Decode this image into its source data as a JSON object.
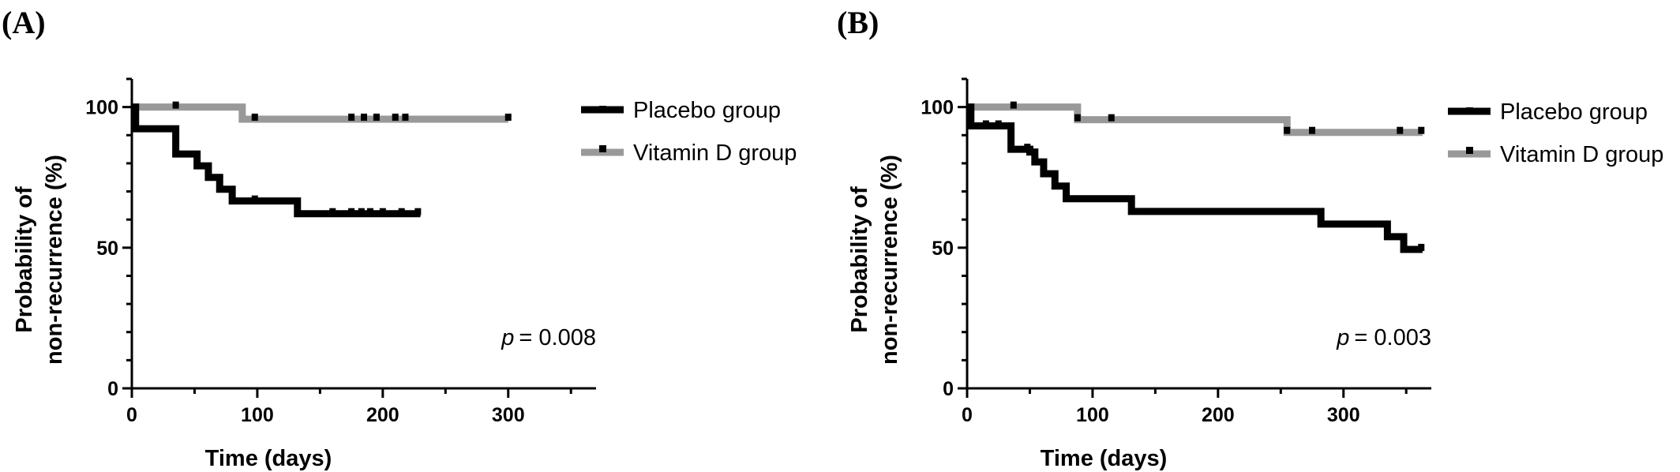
{
  "chart_data": [
    {
      "type": "line",
      "panel_label": "(A)",
      "xlabel": "Time (days)",
      "ylabel_line1": "Probability of",
      "ylabel_line2": "non-recurrence (%)",
      "xlim": [
        0,
        370
      ],
      "ylim": [
        0,
        110
      ],
      "xticks": [
        0,
        100,
        200,
        300
      ],
      "yticks": [
        0,
        50,
        100
      ],
      "pvalue_symbol": "p",
      "pvalue_text": "= 0.008",
      "legend_position": "top-right",
      "series": [
        {
          "name": "Placebo group",
          "color": "#000000",
          "steps": [
            [
              0,
              100
            ],
            [
              3,
              92.3
            ],
            [
              35,
              83.3
            ],
            [
              52,
              79.1
            ],
            [
              61,
              75
            ],
            [
              70,
              70.8
            ],
            [
              80,
              66.6
            ],
            [
              132,
              62.1
            ],
            [
              230,
              62.1
            ]
          ],
          "censored": [
            [
              98,
              66.6
            ],
            [
              160,
              62.1
            ],
            [
              175,
              62.1
            ],
            [
              183,
              62.1
            ],
            [
              190,
              62.1
            ],
            [
              200,
              62.1
            ],
            [
              215,
              62.1
            ],
            [
              228,
              62.1
            ]
          ]
        },
        {
          "name": "Vitamin D group",
          "color": "#999999",
          "steps": [
            [
              0,
              100
            ],
            [
              88,
              95.7
            ],
            [
              300,
              95.7
            ]
          ],
          "censored": [
            [
              35,
              100
            ],
            [
              98,
              95.7
            ],
            [
              175,
              95.7
            ],
            [
              185,
              95.7
            ],
            [
              195,
              95.7
            ],
            [
              210,
              95.7
            ],
            [
              218,
              95.7
            ],
            [
              300,
              95.7
            ]
          ]
        }
      ]
    },
    {
      "type": "line",
      "panel_label": "(B)",
      "xlabel": "Time (days)",
      "ylabel_line1": "Probability of",
      "ylabel_line2": "non-recurrence (%)",
      "xlim": [
        0,
        370
      ],
      "ylim": [
        0,
        110
      ],
      "xticks": [
        0,
        100,
        200,
        300
      ],
      "yticks": [
        0,
        50,
        100
      ],
      "pvalue_symbol": "p",
      "pvalue_text": "= 0.003",
      "legend_position": "top-right",
      "series": [
        {
          "name": "Placebo group",
          "color": "#000000",
          "steps": [
            [
              0,
              100
            ],
            [
              3,
              93.3
            ],
            [
              35,
              85
            ],
            [
              50,
              84
            ],
            [
              54,
              80.5
            ],
            [
              61,
              76.3
            ],
            [
              70,
              71.9
            ],
            [
              79,
              67.4
            ],
            [
              131,
              62.9
            ],
            [
              282,
              58.4
            ],
            [
              335,
              53.9
            ],
            [
              348,
              49.4
            ],
            [
              363,
              49.4
            ]
          ],
          "censored": [
            [
              15,
              93.3
            ],
            [
              25,
              93.3
            ],
            [
              48,
              85
            ],
            [
              362,
              49.4
            ]
          ]
        },
        {
          "name": "Vitamin D group",
          "color": "#999999",
          "steps": [
            [
              0,
              100
            ],
            [
              88,
              95.5
            ],
            [
              255,
              91
            ],
            [
              363,
              91
            ]
          ],
          "censored": [
            [
              37,
              100
            ],
            [
              88,
              95.5
            ],
            [
              115,
              95.5
            ],
            [
              255,
              91
            ],
            [
              275,
              91
            ],
            [
              345,
              91
            ],
            [
              362,
              91
            ]
          ]
        }
      ]
    }
  ]
}
